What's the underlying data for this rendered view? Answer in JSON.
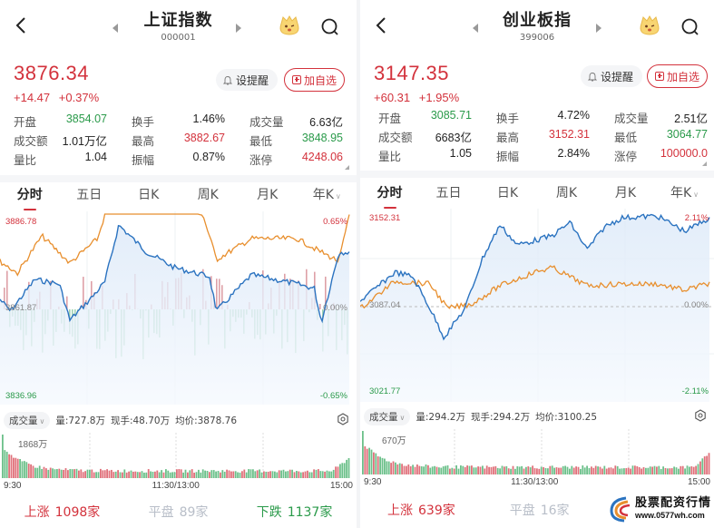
{
  "panes": [
    {
      "title": "上证指数",
      "code": "000001",
      "price": "3876.34",
      "change": "+14.47",
      "change_pct": "+0.37%",
      "alert_label": "设提醒",
      "watchlist_label": "加自选",
      "stats": [
        [
          {
            "k": "开盘",
            "v": "3854.07",
            "c": "green"
          },
          {
            "k": "换手",
            "v": "1.46%",
            "c": ""
          },
          {
            "k": "成交量",
            "v": "6.63亿",
            "c": ""
          }
        ],
        [
          {
            "k": "成交额",
            "v": "1.01万亿",
            "c": ""
          },
          {
            "k": "最高",
            "v": "3882.67",
            "c": "red"
          },
          {
            "k": "最低",
            "v": "3848.95",
            "c": "green"
          }
        ],
        [
          {
            "k": "量比",
            "v": "1.04",
            "c": ""
          },
          {
            "k": "振幅",
            "v": "0.87%",
            "c": ""
          },
          {
            "k": "涨停",
            "v": "4248.06",
            "c": "red"
          }
        ]
      ],
      "tabs": [
        "分时",
        "五日",
        "日K",
        "周K",
        "月K",
        "年K"
      ],
      "active_tab": 0,
      "chart": {
        "y_max_label": "3886.78",
        "y_mid_label": "3861.87",
        "y_min_label": "3836.96",
        "pct_max_label": "0.65%",
        "pct_mid_label": "0.00%",
        "pct_min_label": "-0.65%"
      },
      "volume": {
        "selector": "成交量",
        "vol": "量:727.8万",
        "now_hand": "现手:48.70万",
        "avg": "均价:3878.76",
        "max_label": "1868万"
      },
      "time_axis": [
        "9:30",
        "11:30/13:00",
        "15:00"
      ],
      "breadth": {
        "up_label": "上涨",
        "up_count": "1098家",
        "flat_label": "平盘",
        "flat_count": "89家",
        "down_label": "下跌",
        "down_count": "1137家"
      }
    },
    {
      "title": "创业板指",
      "code": "399006",
      "price": "3147.35",
      "change": "+60.31",
      "change_pct": "+1.95%",
      "alert_label": "设提醒",
      "watchlist_label": "加自选",
      "stats": [
        [
          {
            "k": "开盘",
            "v": "3085.71",
            "c": "green"
          },
          {
            "k": "换手",
            "v": "4.72%",
            "c": ""
          },
          {
            "k": "成交量",
            "v": "2.51亿",
            "c": ""
          }
        ],
        [
          {
            "k": "成交额",
            "v": "6683亿",
            "c": ""
          },
          {
            "k": "最高",
            "v": "3152.31",
            "c": "red"
          },
          {
            "k": "最低",
            "v": "3064.77",
            "c": "green"
          }
        ],
        [
          {
            "k": "量比",
            "v": "1.05",
            "c": ""
          },
          {
            "k": "振幅",
            "v": "2.84%",
            "c": ""
          },
          {
            "k": "涨停",
            "v": "100000.0",
            "c": "red"
          }
        ]
      ],
      "tabs": [
        "分时",
        "五日",
        "日K",
        "周K",
        "月K",
        "年K"
      ],
      "active_tab": 0,
      "chart": {
        "y_max_label": "3152.31",
        "y_mid_label": "3087.04",
        "y_min_label": "3021.77",
        "pct_max_label": "2.11%",
        "pct_mid_label": "0.00%",
        "pct_min_label": "-2.11%"
      },
      "volume": {
        "selector": "成交量",
        "vol": "量:294.2万",
        "now_hand": "现手:294.2万",
        "avg": "均价:3100.25",
        "max_label": "670万"
      },
      "time_axis": [
        "9:30",
        "11:30/13:00",
        "15:00"
      ],
      "breadth": {
        "up_label": "上涨",
        "up_count": "639家",
        "flat_label": "平盘",
        "flat_count": "16家"
      }
    }
  ],
  "watermark": {
    "title": "股票配资行情",
    "url": "www.0577wh.com"
  },
  "colors": {
    "up": "#d3323c",
    "down": "#2a9a4a",
    "price_line": "#2b73c0",
    "avg_line": "#e88f2e"
  }
}
